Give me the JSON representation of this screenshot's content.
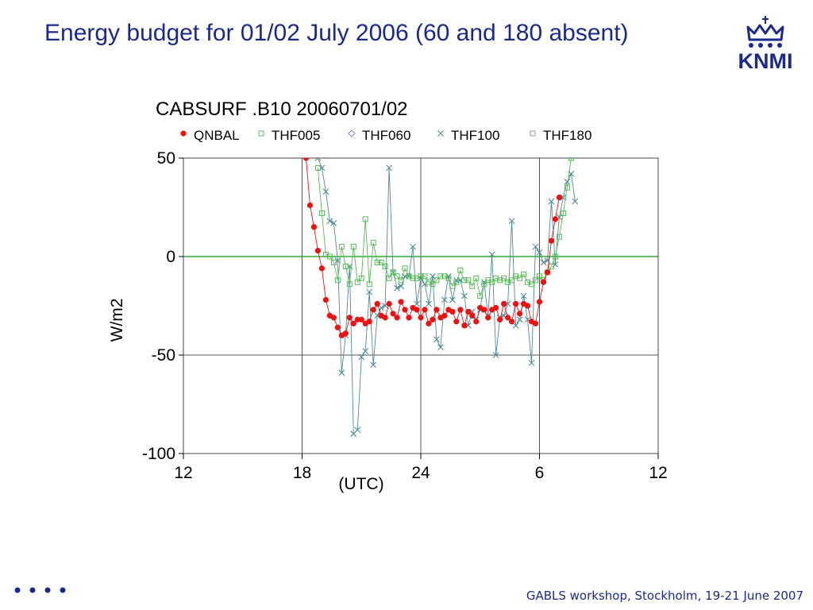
{
  "slide": {
    "title": "Energy budget for 01/02 July 2006 (60 and 180 absent)",
    "logo_text": "KNMI",
    "logo_icon": "crown-icon",
    "footer": "GABLS workshop, Stockholm, 19-21 June 2007",
    "footer_icon": "four-dots-icon",
    "brand_color": "#1a2a8c"
  },
  "chart_data": {
    "type": "line",
    "title": "CABSURF .B10 20060701/02",
    "xlabel": "(UTC)",
    "ylabel": "W/m2",
    "x_unit": "hours since 12 UTC 01 July 2006",
    "xlim": [
      0,
      24
    ],
    "ylim": [
      -100,
      50
    ],
    "x_ticks": [
      0,
      6,
      12,
      18,
      24
    ],
    "x_tick_labels": [
      "12",
      "18",
      "24",
      "6",
      "12"
    ],
    "y_ticks": [
      50,
      0,
      -50,
      -100
    ],
    "y_tick_labels": [
      "50",
      "0",
      "-50",
      "-100"
    ],
    "grid": true,
    "legend_position": "top",
    "zero_line_color": "#33aa33",
    "series": [
      {
        "name": "QNBAL",
        "color": "#ee1111",
        "marker": "dot",
        "x": [
          6.2,
          6.4,
          6.6,
          6.8,
          7.0,
          7.2,
          7.4,
          7.6,
          7.8,
          8.0,
          8.2,
          8.4,
          8.6,
          8.8,
          9.0,
          9.2,
          9.4,
          9.6,
          9.8,
          10.0,
          10.2,
          10.4,
          10.6,
          10.8,
          11.0,
          11.2,
          11.4,
          11.6,
          11.8,
          12.0,
          12.2,
          12.4,
          12.6,
          12.8,
          13.0,
          13.2,
          13.4,
          13.6,
          13.8,
          14.0,
          14.2,
          14.4,
          14.6,
          14.8,
          15.0,
          15.2,
          15.4,
          15.6,
          15.8,
          16.0,
          16.2,
          16.4,
          16.6,
          16.8,
          17.0,
          17.2,
          17.4,
          17.6,
          17.8,
          18.0,
          18.2,
          18.4,
          18.6,
          18.8,
          19.0
        ],
        "y": [
          50,
          26,
          15,
          3,
          -6,
          -22,
          -30,
          -31,
          -36,
          -40,
          -39,
          -31,
          -34,
          -32,
          -32,
          -34,
          -33,
          -27,
          -24,
          -30,
          -31,
          -24,
          -29,
          -31,
          -23,
          -27,
          -31,
          -26,
          -27,
          -31,
          -27,
          -34,
          -32,
          -27,
          -31,
          -30,
          -27,
          -28,
          -33,
          -27,
          -35,
          -28,
          -30,
          -33,
          -26,
          -27,
          -31,
          -27,
          -26,
          -32,
          -24,
          -31,
          -33,
          -24,
          -29,
          -24,
          -25,
          -33,
          -34,
          -23,
          -13,
          -8,
          8,
          19,
          30
        ]
      },
      {
        "name": "THF005",
        "color": "#55bb55",
        "marker": "square",
        "x": [
          6.8,
          7.0,
          7.2,
          7.4,
          7.6,
          7.8,
          8.0,
          8.2,
          8.4,
          8.6,
          8.8,
          9.0,
          9.2,
          9.4,
          9.6,
          9.8,
          10.0,
          10.2,
          10.4,
          10.6,
          10.8,
          11.0,
          11.2,
          11.4,
          11.6,
          11.8,
          12.0,
          12.2,
          12.4,
          12.6,
          12.8,
          13.0,
          13.2,
          13.4,
          13.6,
          13.8,
          14.0,
          14.2,
          14.4,
          14.6,
          14.8,
          15.0,
          15.2,
          15.4,
          15.6,
          15.8,
          16.0,
          16.2,
          16.4,
          16.6,
          16.8,
          17.0,
          17.2,
          17.4,
          17.6,
          17.8,
          18.0,
          18.2,
          18.4,
          18.6,
          18.8,
          19.0,
          19.2,
          19.4,
          19.6
        ],
        "y": [
          45,
          22,
          1,
          0,
          -3,
          -12,
          5,
          -5,
          -14,
          5,
          -13,
          -11,
          19,
          -14,
          7,
          -3,
          -3,
          -5,
          -11,
          -8,
          -10,
          -12,
          -6,
          -10,
          -11,
          -11,
          -10,
          -10,
          -13,
          -14,
          -12,
          -10,
          -10,
          -11,
          -15,
          -13,
          -7,
          -12,
          -12,
          -15,
          -11,
          -20,
          -14,
          -12,
          -13,
          -11,
          -12,
          -11,
          -13,
          -12,
          -10,
          -11,
          -9,
          -13,
          -14,
          -12,
          -10,
          -12,
          -8,
          -5,
          0,
          10,
          22,
          35,
          50
        ]
      },
      {
        "name": "THF060",
        "color": "#7788cc",
        "marker": "diamond",
        "x": [],
        "y": []
      },
      {
        "name": "THF100",
        "color": "#4f8a9a",
        "marker": "cross",
        "x": [
          6.8,
          7.0,
          7.2,
          7.4,
          7.6,
          7.8,
          8.0,
          8.2,
          8.4,
          8.6,
          8.8,
          9.0,
          9.2,
          9.4,
          9.6,
          9.8,
          10.0,
          10.2,
          10.4,
          10.6,
          10.8,
          11.0,
          11.2,
          11.4,
          11.6,
          11.8,
          12.0,
          12.2,
          12.4,
          12.6,
          12.8,
          13.0,
          13.2,
          13.4,
          13.6,
          13.8,
          14.0,
          14.2,
          14.4,
          14.6,
          14.8,
          15.0,
          15.2,
          15.4,
          15.6,
          15.8,
          16.0,
          16.2,
          16.4,
          16.6,
          16.8,
          17.0,
          17.2,
          17.4,
          17.6,
          17.8,
          18.0,
          18.2,
          18.4,
          18.6,
          18.8,
          19.0,
          19.2,
          19.4,
          19.6,
          19.8
        ],
        "y": [
          50,
          45,
          33,
          18,
          17,
          -2,
          -59,
          -40,
          -5,
          -90,
          -88,
          -51,
          -48,
          -18,
          -55,
          -30,
          -26,
          -25,
          45,
          -8,
          -16,
          -15,
          -10,
          -10,
          5,
          -24,
          -11,
          -14,
          -24,
          -10,
          -42,
          -46,
          -22,
          -10,
          -22,
          -12,
          -12,
          -20,
          -35,
          -28,
          -32,
          -27,
          -13,
          -30,
          1,
          -50,
          -31,
          -30,
          -24,
          18,
          -35,
          -32,
          -20,
          -32,
          -54,
          5,
          2,
          -3,
          -2,
          28,
          -4,
          20,
          30,
          38,
          42,
          28
        ]
      },
      {
        "name": "THF180",
        "color": "#999999",
        "marker": "square",
        "x": [],
        "y": []
      }
    ]
  }
}
